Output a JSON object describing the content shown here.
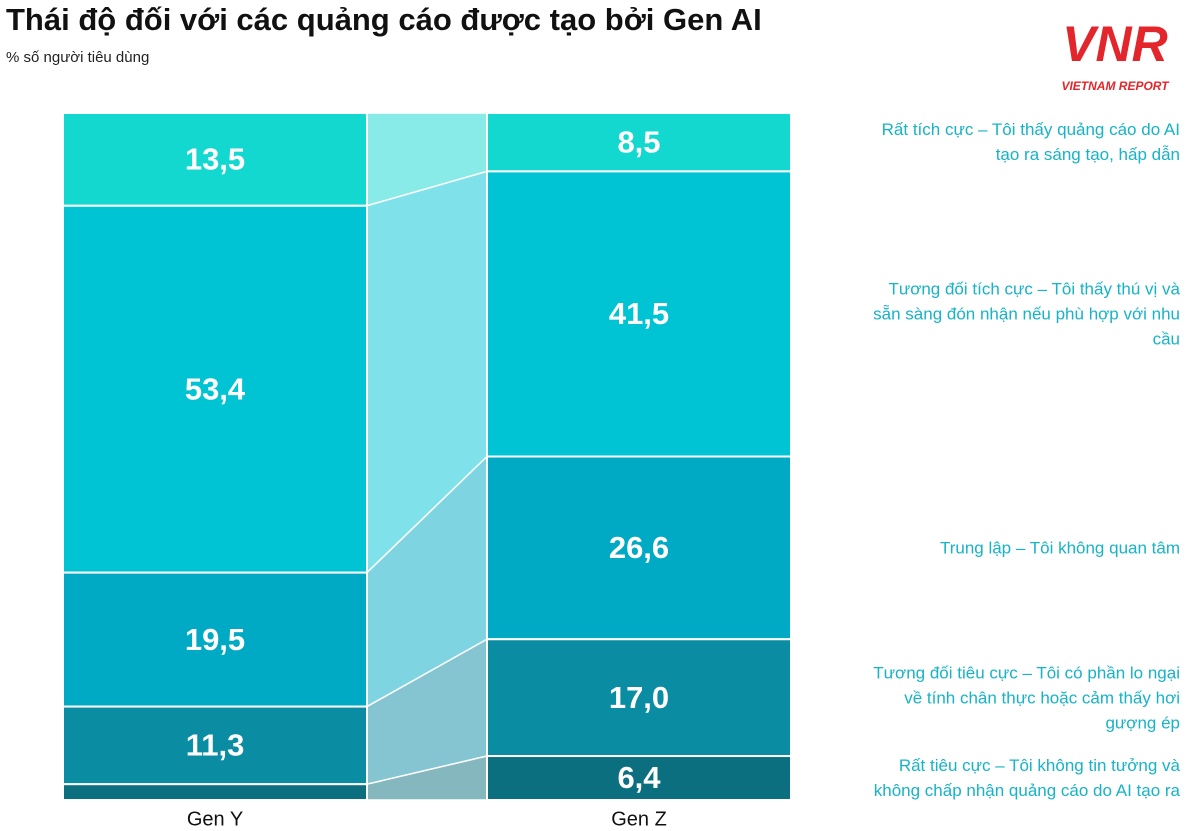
{
  "logo": {
    "text": "VNR",
    "subtext": "VIETNAM REPORT"
  },
  "chart_data": {
    "type": "stacked-bar",
    "title": "Thái độ đối với các quảng cáo được tạo bởi Gen AI",
    "subtitle": "% số người tiêu dùng",
    "categories": [
      "Gen Y",
      "Gen Z"
    ],
    "series": [
      {
        "name": "Rất tích cực – Tôi thấy quảng cáo do AI tạo ra sáng tạo, hấp dẫn",
        "color": "#13d8cf",
        "values": [
          13.5,
          8.5
        ],
        "value_labels": [
          "13,5",
          "8,5"
        ]
      },
      {
        "name": "Tương đối tích cực – Tôi thấy thú vị và sẵn sàng đón nhận nếu phù hợp với nhu cầu",
        "color": "#00c3d3",
        "values": [
          53.4,
          41.5
        ],
        "value_labels": [
          "53,4",
          "41,5"
        ]
      },
      {
        "name": "Trung lập – Tôi không quan tâm",
        "color": "#00a9c4",
        "values": [
          19.5,
          26.6
        ],
        "value_labels": [
          "19,5",
          "26,6"
        ]
      },
      {
        "name": "Tương đối tiêu cực – Tôi có phần lo ngại về tính chân thực hoặc cảm thấy hơi gượng ép",
        "color": "#0a8ca3",
        "values": [
          11.3,
          17.0
        ],
        "value_labels": [
          "11,3",
          "17,0"
        ]
      },
      {
        "name": "Rất tiêu cực – Tôi không tin tưởng và không chấp nhận quảng cáo do AI tạo ra",
        "color": "#0b6f80",
        "values": [
          2.3,
          6.4
        ],
        "value_labels": [
          null,
          "6,4"
        ]
      }
    ]
  }
}
